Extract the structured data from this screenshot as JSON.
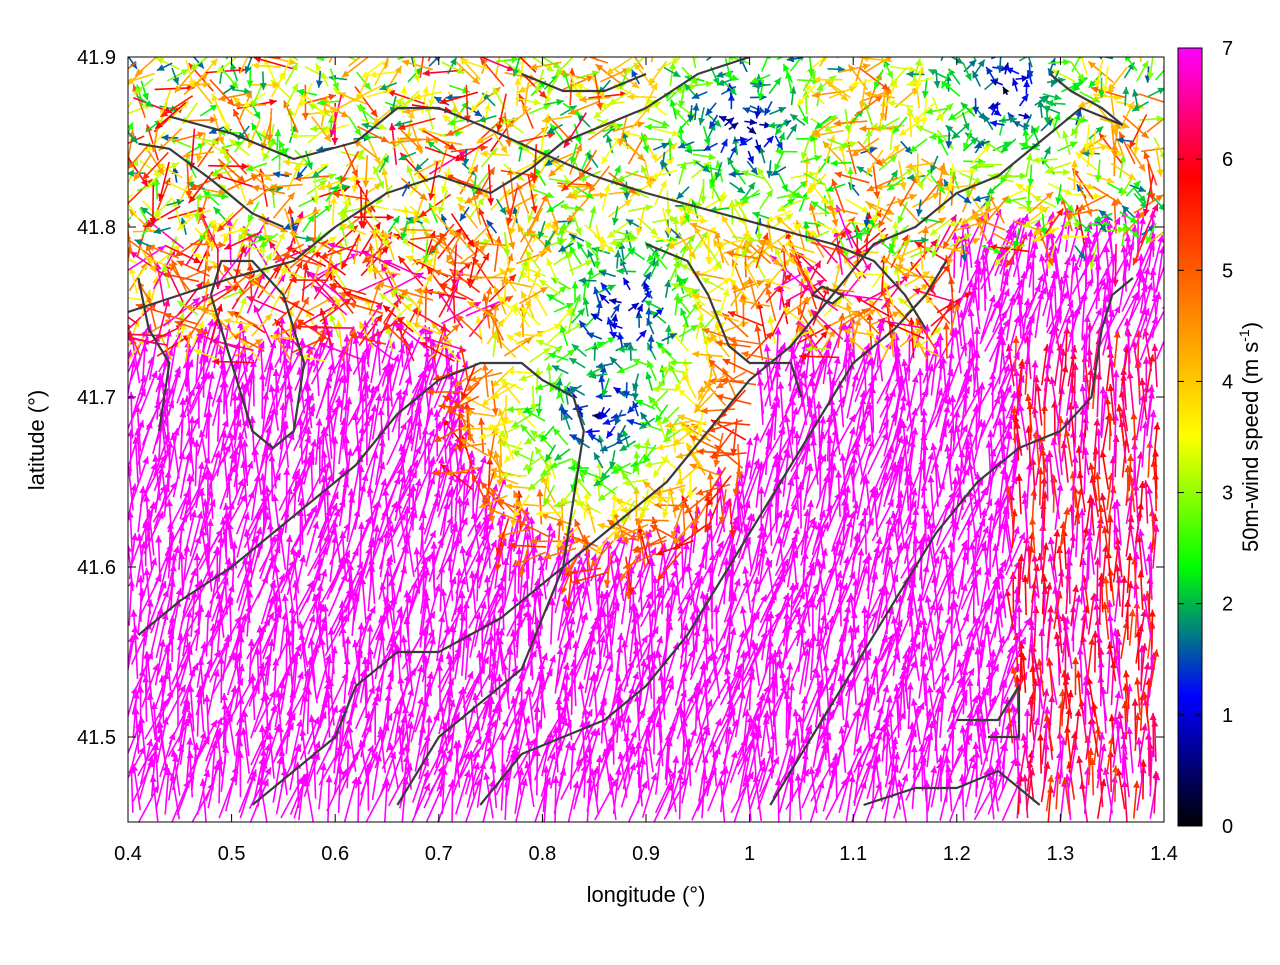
{
  "chart_data": {
    "type": "quiver",
    "xlabel": "longitude (°)",
    "ylabel": "latitude (°)",
    "xlim": [
      0.4,
      1.4
    ],
    "ylim": [
      41.45,
      41.9
    ],
    "x_ticks": [
      "0.4",
      "0.5",
      "0.6",
      "0.7",
      "0.8",
      "0.9",
      "1",
      "1.1",
      "1.2",
      "1.3",
      "1.4"
    ],
    "y_ticks": [
      "41.5",
      "41.6",
      "41.7",
      "41.8",
      "41.9"
    ],
    "colorbar": {
      "label_main": "50m-wind speed (m s",
      "label_sup": "-1",
      "label_end": ")",
      "range": [
        0,
        7
      ],
      "ticks": [
        "0",
        "1",
        "2",
        "3",
        "4",
        "5",
        "6",
        "7"
      ],
      "palette": [
        "#000000",
        "#0000ff",
        "#00ff00",
        "#ffff00",
        "#ff8000",
        "#ff0000",
        "#ff00ff"
      ]
    },
    "grid": false,
    "vector_field": {
      "extent_lon": [
        0.4,
        1.4
      ],
      "extent_lat": [
        41.45,
        41.9
      ],
      "dominant_direction": "north-northeast",
      "calm_zones": [
        {
          "lon": 0.88,
          "lat": 41.75
        },
        {
          "lon": 0.99,
          "lat": 41.86
        },
        {
          "lon": 1.25,
          "lat": 41.88
        },
        {
          "lon": 0.86,
          "lat": 41.69
        }
      ],
      "max_speed": 7
    },
    "contours": [
      [
        [
          0.41,
          41.849
        ],
        [
          0.44,
          41.846
        ],
        [
          0.48,
          41.828
        ],
        [
          0.52,
          41.808
        ],
        [
          0.55,
          41.8
        ]
      ],
      [
        [
          0.44,
          41.865
        ],
        [
          0.5,
          41.855
        ],
        [
          0.56,
          41.84
        ],
        [
          0.62,
          41.85
        ],
        [
          0.66,
          41.87
        ],
        [
          0.7,
          41.87
        ],
        [
          0.74,
          41.86
        ],
        [
          0.79,
          41.846
        ],
        [
          0.85,
          41.83
        ],
        [
          0.9,
          41.82
        ],
        [
          0.96,
          41.81
        ],
        [
          1.02,
          41.8
        ],
        [
          1.08,
          41.79
        ],
        [
          1.12,
          41.78
        ],
        [
          1.15,
          41.76
        ],
        [
          1.17,
          41.74
        ]
      ],
      [
        [
          0.4,
          41.75
        ],
        [
          0.45,
          41.76
        ],
        [
          0.5,
          41.77
        ],
        [
          0.56,
          41.78
        ],
        [
          0.6,
          41.8
        ],
        [
          0.65,
          41.82
        ],
        [
          0.7,
          41.83
        ],
        [
          0.75,
          41.82
        ],
        [
          0.79,
          41.835
        ],
        [
          0.82,
          41.85
        ],
        [
          0.86,
          41.86
        ],
        [
          0.9,
          41.87
        ],
        [
          0.95,
          41.89
        ],
        [
          1.0,
          41.9
        ]
      ],
      [
        [
          0.41,
          41.56
        ],
        [
          0.45,
          41.58
        ],
        [
          0.5,
          41.6
        ],
        [
          0.54,
          41.62
        ],
        [
          0.58,
          41.64
        ],
        [
          0.62,
          41.66
        ],
        [
          0.66,
          41.69
        ],
        [
          0.7,
          41.71
        ],
        [
          0.74,
          41.72
        ],
        [
          0.78,
          41.72
        ],
        [
          0.8,
          41.71
        ],
        [
          0.83,
          41.7
        ],
        [
          0.84,
          41.68
        ],
        [
          0.83,
          41.64
        ],
        [
          0.82,
          41.6
        ],
        [
          0.8,
          41.57
        ],
        [
          0.78,
          41.54
        ],
        [
          0.74,
          41.52
        ],
        [
          0.7,
          41.5
        ],
        [
          0.66,
          41.46
        ]
      ],
      [
        [
          0.52,
          41.46
        ],
        [
          0.56,
          41.48
        ],
        [
          0.6,
          41.5
        ],
        [
          0.62,
          41.53
        ],
        [
          0.66,
          41.55
        ],
        [
          0.7,
          41.55
        ],
        [
          0.73,
          41.56
        ],
        [
          0.76,
          41.57
        ],
        [
          0.8,
          41.59
        ],
        [
          0.84,
          41.61
        ],
        [
          0.88,
          41.63
        ],
        [
          0.92,
          41.65
        ],
        [
          0.96,
          41.68
        ],
        [
          1.0,
          41.71
        ],
        [
          1.04,
          41.73
        ],
        [
          1.08,
          41.76
        ],
        [
          1.12,
          41.79
        ],
        [
          1.16,
          41.8
        ],
        [
          1.2,
          41.82
        ],
        [
          1.24,
          41.83
        ],
        [
          1.28,
          41.85
        ],
        [
          1.32,
          41.87
        ],
        [
          1.36,
          41.86
        ]
      ],
      [
        [
          0.74,
          41.46
        ],
        [
          0.78,
          41.49
        ],
        [
          0.82,
          41.5
        ],
        [
          0.86,
          41.51
        ],
        [
          0.9,
          41.53
        ],
        [
          0.94,
          41.56
        ],
        [
          0.98,
          41.6
        ],
        [
          1.02,
          41.64
        ],
        [
          1.06,
          41.68
        ],
        [
          1.1,
          41.72
        ],
        [
          1.14,
          41.74
        ],
        [
          1.17,
          41.76
        ],
        [
          1.19,
          41.78
        ]
      ],
      [
        [
          1.02,
          41.46
        ],
        [
          1.06,
          41.5
        ],
        [
          1.1,
          41.54
        ],
        [
          1.14,
          41.58
        ],
        [
          1.18,
          41.62
        ],
        [
          1.22,
          41.65
        ],
        [
          1.26,
          41.67
        ],
        [
          1.3,
          41.68
        ],
        [
          1.33,
          41.7
        ],
        [
          1.34,
          41.74
        ],
        [
          1.35,
          41.76
        ],
        [
          1.37,
          41.77
        ]
      ],
      [
        [
          1.11,
          41.46
        ],
        [
          1.16,
          41.47
        ],
        [
          1.2,
          41.47
        ],
        [
          1.24,
          41.48
        ],
        [
          1.26,
          41.47
        ],
        [
          1.28,
          41.46
        ]
      ],
      [
        [
          1.2,
          41.51
        ],
        [
          1.24,
          41.51
        ],
        [
          1.26,
          41.53
        ],
        [
          1.26,
          41.5
        ],
        [
          1.23,
          41.5
        ]
      ],
      [
        [
          0.48,
          41.76
        ],
        [
          0.5,
          41.72
        ],
        [
          0.52,
          41.68
        ],
        [
          0.54,
          41.67
        ],
        [
          0.56,
          41.68
        ],
        [
          0.57,
          41.72
        ],
        [
          0.55,
          41.76
        ],
        [
          0.52,
          41.78
        ],
        [
          0.49,
          41.78
        ],
        [
          0.48,
          41.76
        ]
      ],
      [
        [
          0.41,
          41.77
        ],
        [
          0.42,
          41.74
        ],
        [
          0.44,
          41.72
        ],
        [
          0.43,
          41.68
        ]
      ],
      [
        [
          1.06,
          41.76
        ],
        [
          1.08,
          41.755
        ],
        [
          1.09,
          41.76
        ],
        [
          1.07,
          41.765
        ],
        [
          1.06,
          41.76
        ]
      ],
      [
        [
          0.9,
          41.79
        ],
        [
          0.94,
          41.78
        ],
        [
          0.96,
          41.76
        ],
        [
          0.98,
          41.73
        ],
        [
          1.0,
          41.72
        ],
        [
          1.04,
          41.72
        ],
        [
          1.05,
          41.7
        ]
      ],
      [
        [
          1.29,
          41.89
        ],
        [
          1.31,
          41.88
        ],
        [
          1.34,
          41.87
        ],
        [
          1.36,
          41.86
        ]
      ],
      [
        [
          0.78,
          41.89
        ],
        [
          0.82,
          41.88
        ],
        [
          0.86,
          41.88
        ],
        [
          0.9,
          41.89
        ]
      ]
    ]
  }
}
